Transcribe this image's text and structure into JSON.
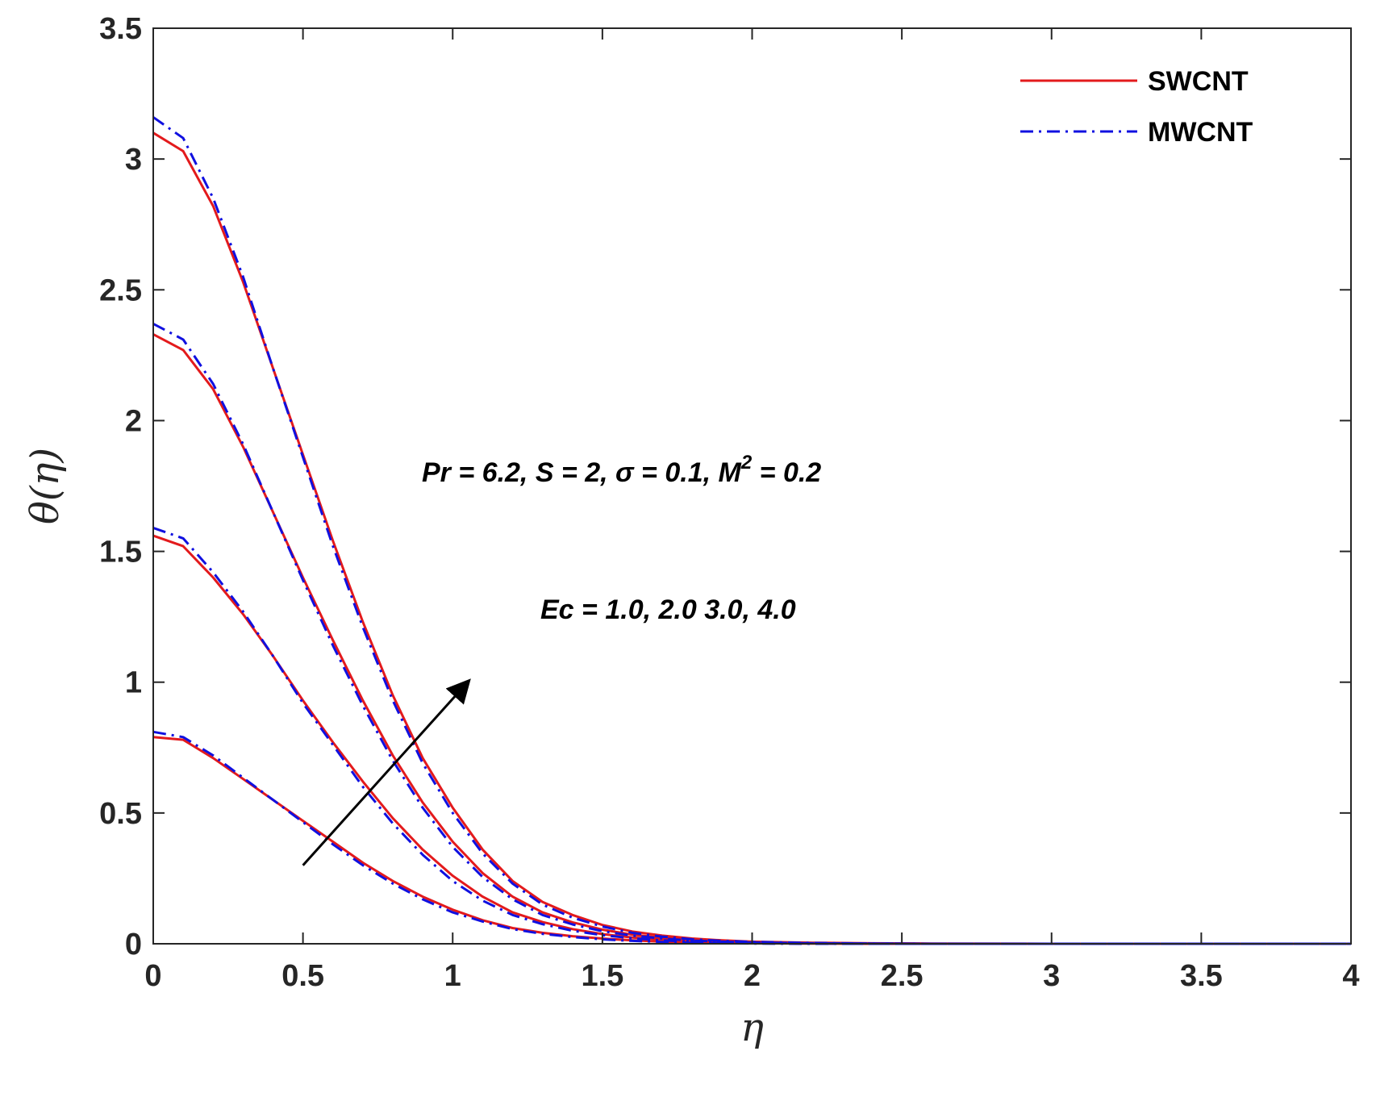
{
  "chart_data": {
    "type": "line",
    "title": "",
    "xlabel": "η",
    "ylabel": "θ(η)",
    "xlim": [
      0,
      4
    ],
    "ylim": [
      0,
      3.5
    ],
    "x_ticks": [
      "0",
      "0.5",
      "1",
      "1.5",
      "2",
      "2.5",
      "3",
      "3.5",
      "4"
    ],
    "y_ticks": [
      "0",
      "0.5",
      "1",
      "1.5",
      "2",
      "2.5",
      "3",
      "3.5"
    ],
    "grid": false,
    "legend_position": "top-right",
    "legend": [
      {
        "label": "SWCNT",
        "color": "#e31a1c",
        "style": "solid"
      },
      {
        "label": "MWCNT",
        "color": "#1010e0",
        "style": "dash-dot"
      }
    ],
    "annotations": {
      "params": "Pr = 6.2, S = 2, σ = 0.1, M² = 0.2",
      "params_parts": {
        "base": "Pr = 6.2, S = 2, σ = 0.1, M",
        "sup": "2",
        "tail": " = 0.2"
      },
      "ec": "Ec = 1.0, 2.0 3.0, 4.0",
      "arrow": {
        "from": [
          0.5,
          0.3
        ],
        "to": [
          1.05,
          1.0
        ],
        "color": "#000000"
      }
    },
    "x": [
      0,
      0.1,
      0.2,
      0.3,
      0.4,
      0.5,
      0.6,
      0.7,
      0.8,
      0.9,
      1.0,
      1.1,
      1.2,
      1.3,
      1.4,
      1.5,
      1.6,
      1.7,
      1.8,
      1.9,
      2.0,
      2.2,
      2.4,
      2.6,
      3.0,
      3.5,
      4.0
    ],
    "series": [
      {
        "group": "SWCNT",
        "ec": "1.0",
        "values": [
          0.79,
          0.78,
          0.71,
          0.63,
          0.55,
          0.47,
          0.39,
          0.31,
          0.24,
          0.18,
          0.13,
          0.09,
          0.06,
          0.042,
          0.029,
          0.02,
          0.013,
          0.008,
          0.005,
          0.003,
          0.002,
          0.001,
          0,
          0,
          0,
          0,
          0
        ]
      },
      {
        "group": "SWCNT",
        "ec": "2.0",
        "values": [
          1.56,
          1.52,
          1.4,
          1.26,
          1.1,
          0.93,
          0.77,
          0.62,
          0.48,
          0.36,
          0.26,
          0.18,
          0.12,
          0.083,
          0.056,
          0.037,
          0.024,
          0.016,
          0.01,
          0.006,
          0.004,
          0.002,
          0.001,
          0,
          0,
          0,
          0
        ]
      },
      {
        "group": "SWCNT",
        "ec": "3.0",
        "values": [
          2.33,
          2.27,
          2.12,
          1.9,
          1.65,
          1.4,
          1.16,
          0.93,
          0.72,
          0.54,
          0.39,
          0.27,
          0.18,
          0.12,
          0.082,
          0.054,
          0.035,
          0.023,
          0.015,
          0.01,
          0.006,
          0.003,
          0.001,
          0,
          0,
          0,
          0
        ]
      },
      {
        "group": "SWCNT",
        "ec": "4.0",
        "values": [
          3.1,
          3.03,
          2.82,
          2.53,
          2.2,
          1.87,
          1.54,
          1.23,
          0.95,
          0.71,
          0.52,
          0.36,
          0.24,
          0.16,
          0.11,
          0.072,
          0.047,
          0.031,
          0.02,
          0.013,
          0.008,
          0.004,
          0.002,
          0.001,
          0,
          0,
          0
        ]
      },
      {
        "group": "MWCNT",
        "ec": "1.0",
        "values": [
          0.81,
          0.79,
          0.72,
          0.635,
          0.55,
          0.465,
          0.38,
          0.3,
          0.23,
          0.17,
          0.12,
          0.085,
          0.056,
          0.038,
          0.026,
          0.017,
          0.011,
          0.007,
          0.004,
          0.002,
          0.001,
          0,
          0,
          0,
          0,
          0,
          0
        ]
      },
      {
        "group": "MWCNT",
        "ec": "2.0",
        "values": [
          1.59,
          1.55,
          1.42,
          1.27,
          1.1,
          0.92,
          0.76,
          0.6,
          0.46,
          0.34,
          0.24,
          0.165,
          0.11,
          0.075,
          0.05,
          0.033,
          0.021,
          0.013,
          0.008,
          0.005,
          0.003,
          0.001,
          0,
          0,
          0,
          0,
          0
        ]
      },
      {
        "group": "MWCNT",
        "ec": "3.0",
        "values": [
          2.37,
          2.31,
          2.14,
          1.91,
          1.65,
          1.39,
          1.14,
          0.91,
          0.7,
          0.52,
          0.37,
          0.255,
          0.17,
          0.11,
          0.074,
          0.048,
          0.031,
          0.02,
          0.012,
          0.008,
          0.005,
          0.002,
          0.001,
          0,
          0,
          0,
          0
        ]
      },
      {
        "group": "MWCNT",
        "ec": "4.0",
        "values": [
          3.16,
          3.08,
          2.85,
          2.55,
          2.2,
          1.86,
          1.52,
          1.21,
          0.93,
          0.69,
          0.5,
          0.345,
          0.23,
          0.15,
          0.1,
          0.066,
          0.042,
          0.027,
          0.017,
          0.011,
          0.007,
          0.003,
          0.001,
          0,
          0,
          0,
          0
        ]
      }
    ]
  }
}
